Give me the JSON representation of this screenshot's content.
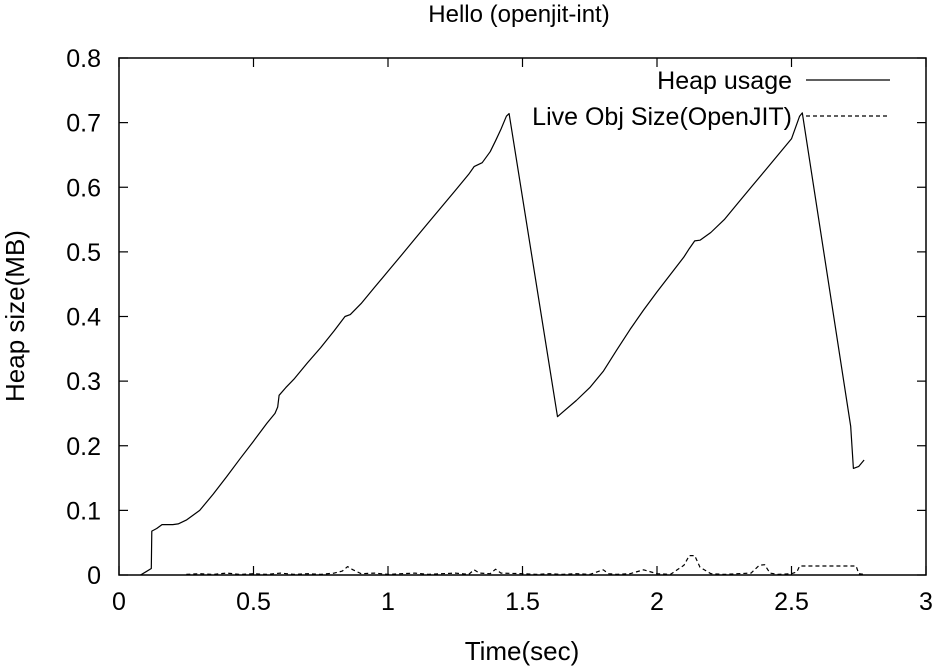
{
  "chart_data": {
    "type": "line",
    "title": "Hello (openjit-int)",
    "xlabel": "Time(sec)",
    "ylabel": "Heap size(MB)",
    "xlim": [
      0,
      3
    ],
    "ylim": [
      0,
      0.8
    ],
    "xticks": [
      0,
      0.5,
      1,
      1.5,
      2,
      2.5,
      3
    ],
    "xtick_labels": [
      "0",
      "0.5",
      "1",
      "1.5",
      "2",
      "2.5",
      "3"
    ],
    "yticks": [
      0,
      0.1,
      0.2,
      0.3,
      0.4,
      0.5,
      0.6,
      0.7,
      0.8
    ],
    "ytick_labels": [
      "0",
      "0.1",
      "0.2",
      "0.3",
      "0.4",
      "0.5",
      "0.6",
      "0.7",
      "0.8"
    ],
    "grid": false,
    "legend_position": "top-right",
    "series": [
      {
        "name": "Heap usage",
        "style": "solid",
        "color": "#000000",
        "points": [
          [
            0.08,
            0.0
          ],
          [
            0.1,
            0.005
          ],
          [
            0.12,
            0.01
          ],
          [
            0.122,
            0.068
          ],
          [
            0.14,
            0.072
          ],
          [
            0.16,
            0.078
          ],
          [
            0.2,
            0.078
          ],
          [
            0.22,
            0.079
          ],
          [
            0.25,
            0.085
          ],
          [
            0.3,
            0.1
          ],
          [
            0.35,
            0.125
          ],
          [
            0.4,
            0.152
          ],
          [
            0.45,
            0.18
          ],
          [
            0.5,
            0.207
          ],
          [
            0.55,
            0.235
          ],
          [
            0.58,
            0.25
          ],
          [
            0.59,
            0.26
          ],
          [
            0.595,
            0.278
          ],
          [
            0.62,
            0.29
          ],
          [
            0.65,
            0.303
          ],
          [
            0.7,
            0.328
          ],
          [
            0.75,
            0.352
          ],
          [
            0.8,
            0.378
          ],
          [
            0.84,
            0.4
          ],
          [
            0.86,
            0.403
          ],
          [
            0.9,
            0.42
          ],
          [
            0.95,
            0.445
          ],
          [
            1.0,
            0.47
          ],
          [
            1.05,
            0.495
          ],
          [
            1.1,
            0.52
          ],
          [
            1.15,
            0.545
          ],
          [
            1.2,
            0.57
          ],
          [
            1.25,
            0.595
          ],
          [
            1.3,
            0.62
          ],
          [
            1.32,
            0.632
          ],
          [
            1.35,
            0.638
          ],
          [
            1.38,
            0.655
          ],
          [
            1.4,
            0.672
          ],
          [
            1.42,
            0.69
          ],
          [
            1.44,
            0.71
          ],
          [
            1.45,
            0.714
          ],
          [
            1.63,
            0.245
          ],
          [
            1.65,
            0.252
          ],
          [
            1.7,
            0.27
          ],
          [
            1.75,
            0.29
          ],
          [
            1.8,
            0.315
          ],
          [
            1.85,
            0.348
          ],
          [
            1.9,
            0.38
          ],
          [
            1.95,
            0.41
          ],
          [
            2.0,
            0.438
          ],
          [
            2.05,
            0.465
          ],
          [
            2.1,
            0.492
          ],
          [
            2.12,
            0.505
          ],
          [
            2.14,
            0.517
          ],
          [
            2.16,
            0.518
          ],
          [
            2.2,
            0.53
          ],
          [
            2.25,
            0.55
          ],
          [
            2.3,
            0.575
          ],
          [
            2.35,
            0.6
          ],
          [
            2.4,
            0.625
          ],
          [
            2.45,
            0.65
          ],
          [
            2.5,
            0.675
          ],
          [
            2.53,
            0.71
          ],
          [
            2.54,
            0.715
          ],
          [
            2.72,
            0.23
          ],
          [
            2.73,
            0.165
          ],
          [
            2.75,
            0.168
          ],
          [
            2.77,
            0.178
          ]
        ]
      },
      {
        "name": "Live Obj Size(OpenJIT)",
        "style": "dashed",
        "color": "#000000",
        "points": [
          [
            0.25,
            0.001
          ],
          [
            0.3,
            0.002
          ],
          [
            0.35,
            0.001
          ],
          [
            0.4,
            0.003
          ],
          [
            0.45,
            0.001
          ],
          [
            0.5,
            0.002
          ],
          [
            0.55,
            0.001
          ],
          [
            0.6,
            0.003
          ],
          [
            0.65,
            0.001
          ],
          [
            0.7,
            0.002
          ],
          [
            0.75,
            0.001
          ],
          [
            0.8,
            0.003
          ],
          [
            0.83,
            0.006
          ],
          [
            0.85,
            0.013
          ],
          [
            0.87,
            0.008
          ],
          [
            0.9,
            0.002
          ],
          [
            0.95,
            0.003
          ],
          [
            1.0,
            0.001
          ],
          [
            1.05,
            0.002
          ],
          [
            1.1,
            0.003
          ],
          [
            1.15,
            0.001
          ],
          [
            1.2,
            0.002
          ],
          [
            1.25,
            0.003
          ],
          [
            1.3,
            0.001
          ],
          [
            1.32,
            0.008
          ],
          [
            1.34,
            0.003
          ],
          [
            1.38,
            0.002
          ],
          [
            1.4,
            0.009
          ],
          [
            1.42,
            0.003
          ],
          [
            1.5,
            0.002
          ],
          [
            1.55,
            0.001
          ],
          [
            1.6,
            0.002
          ],
          [
            1.65,
            0.001
          ],
          [
            1.7,
            0.002
          ],
          [
            1.75,
            0.001
          ],
          [
            1.8,
            0.008
          ],
          [
            1.82,
            0.002
          ],
          [
            1.85,
            0.001
          ],
          [
            1.9,
            0.002
          ],
          [
            1.95,
            0.008
          ],
          [
            2.0,
            0.002
          ],
          [
            2.05,
            0.001
          ],
          [
            2.1,
            0.015
          ],
          [
            2.12,
            0.03
          ],
          [
            2.14,
            0.03
          ],
          [
            2.16,
            0.012
          ],
          [
            2.2,
            0.002
          ],
          [
            2.25,
            0.001
          ],
          [
            2.3,
            0.002
          ],
          [
            2.35,
            0.003
          ],
          [
            2.38,
            0.015
          ],
          [
            2.4,
            0.016
          ],
          [
            2.42,
            0.003
          ],
          [
            2.45,
            0.001
          ],
          [
            2.5,
            0.002
          ],
          [
            2.52,
            0.005
          ],
          [
            2.53,
            0.014
          ],
          [
            2.6,
            0.014
          ],
          [
            2.7,
            0.014
          ],
          [
            2.74,
            0.014
          ],
          [
            2.75,
            0.002
          ],
          [
            2.77,
            0.001
          ]
        ]
      }
    ]
  }
}
